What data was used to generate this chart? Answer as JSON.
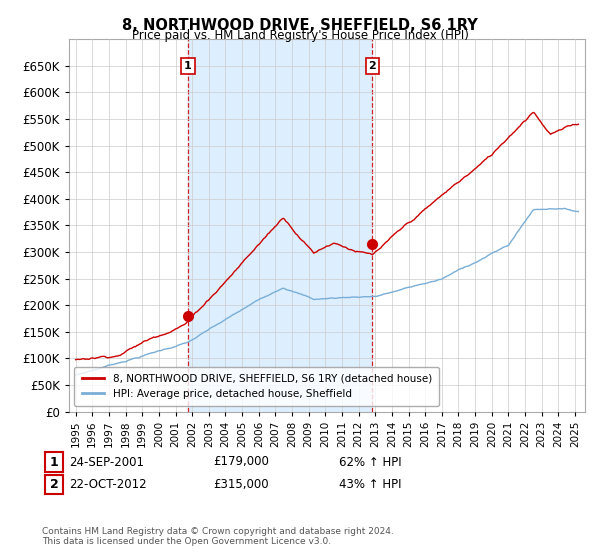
{
  "title": "8, NORTHWOOD DRIVE, SHEFFIELD, S6 1RY",
  "subtitle": "Price paid vs. HM Land Registry's House Price Index (HPI)",
  "ylim": [
    0,
    680000
  ],
  "yticks": [
    0,
    50000,
    100000,
    150000,
    200000,
    250000,
    300000,
    350000,
    400000,
    450000,
    500000,
    550000,
    600000,
    650000
  ],
  "sale1_price": 179000,
  "sale1_label": "1",
  "sale1_year": "24-SEP-2001",
  "sale1_pct": "62% ↑ HPI",
  "sale2_price": 315000,
  "sale2_label": "2",
  "sale2_year": "22-OCT-2012",
  "sale2_pct": "43% ↑ HPI",
  "line_color_property": "#cc0000",
  "line_color_hpi": "#7aaed6",
  "shade_color": "#ddeeff",
  "grid_color": "#cccccc",
  "background_color": "#ffffff",
  "legend_label_property": "8, NORTHWOOD DRIVE, SHEFFIELD, S6 1RY (detached house)",
  "legend_label_hpi": "HPI: Average price, detached house, Sheffield",
  "footnote": "Contains HM Land Registry data © Crown copyright and database right 2024.\nThis data is licensed under the Open Government Licence v3.0.",
  "xticklabels": [
    "1995",
    "1996",
    "1997",
    "1998",
    "1999",
    "2000",
    "2001",
    "2002",
    "2003",
    "2004",
    "2005",
    "2006",
    "2007",
    "2008",
    "2009",
    "2010",
    "2011",
    "2012",
    "2013",
    "2014",
    "2015",
    "2016",
    "2017",
    "2018",
    "2019",
    "2020",
    "2021",
    "2022",
    "2023",
    "2024",
    "2025"
  ]
}
